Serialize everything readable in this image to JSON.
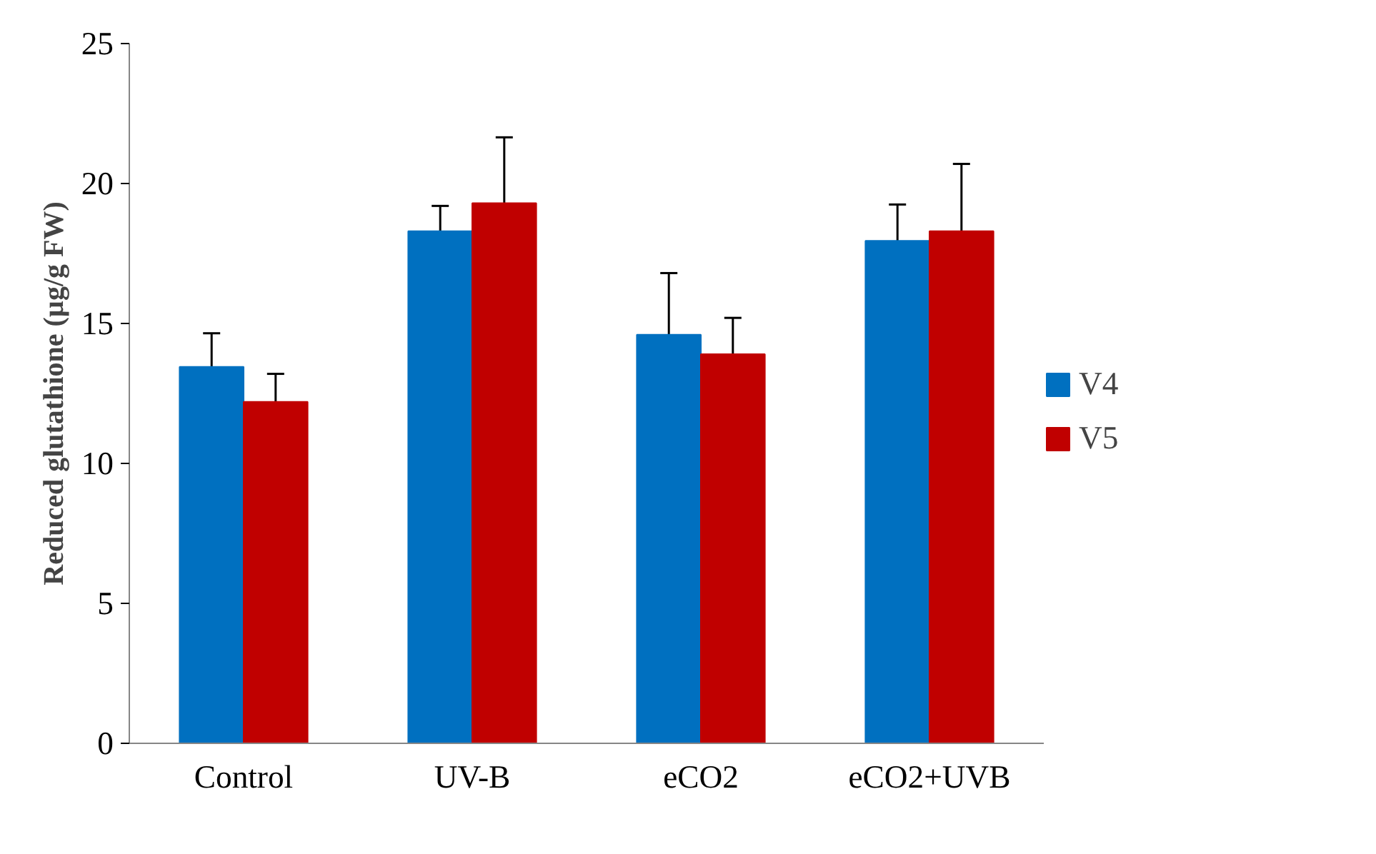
{
  "chart_data": {
    "type": "bar",
    "ylabel": "Reduced glutathione (µg/g FW)",
    "categories": [
      "Control",
      "UV-B",
      "eCO2",
      "eCO2+UVB"
    ],
    "series": [
      {
        "name": "V4",
        "color": "#0070c0",
        "values": [
          13.45,
          18.3,
          14.6,
          17.95
        ],
        "errors": [
          1.2,
          0.9,
          2.2,
          1.3
        ]
      },
      {
        "name": "V5",
        "color": "#c00000",
        "values": [
          12.2,
          19.3,
          13.9,
          18.3
        ],
        "errors": [
          1.0,
          2.35,
          1.3,
          2.4
        ]
      }
    ],
    "ylim": [
      0,
      25
    ],
    "yticks": [
      0,
      5,
      10,
      15,
      20,
      25
    ],
    "grid": false,
    "legend": "right"
  }
}
